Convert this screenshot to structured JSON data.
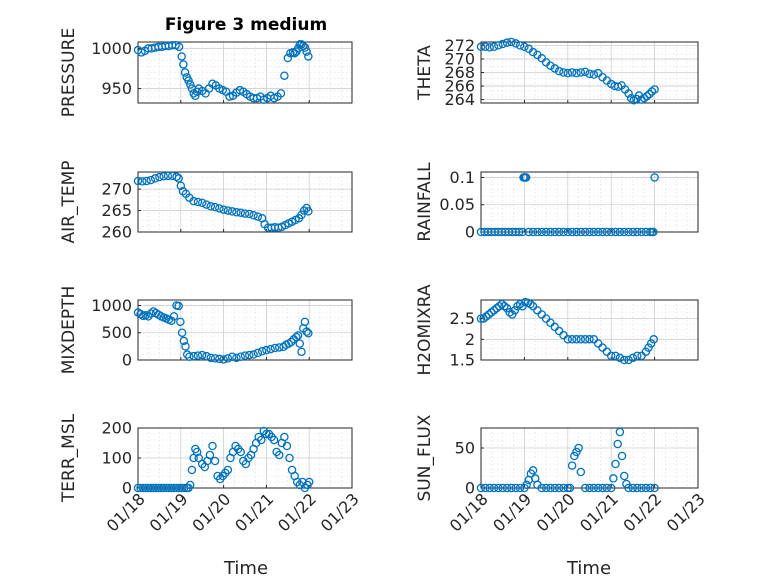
{
  "chart_data": {
    "type": "scatter",
    "title": "Figure 3 medium",
    "xlabel": "Time",
    "xlim": [
      0,
      5
    ],
    "xticks": [
      0,
      1,
      2,
      3,
      4,
      5
    ],
    "xticklabels": [
      "01/18",
      "01/19",
      "01/20",
      "01/21",
      "01/22",
      "01/23"
    ],
    "marker_color": "#0072BD",
    "panels": [
      {
        "id": "pressure",
        "ylabel": "PRESSURE",
        "ylim": [
          932,
          1008
        ],
        "yticks": [
          950,
          1000
        ],
        "yticklabels": [
          "950",
          "1000"
        ],
        "x": [
          0.0,
          0.08,
          0.16,
          0.24,
          0.32,
          0.4,
          0.48,
          0.56,
          0.64,
          0.72,
          0.8,
          0.88,
          0.96,
          1.02,
          1.06,
          1.1,
          1.14,
          1.18,
          1.22,
          1.26,
          1.3,
          1.34,
          1.38,
          1.42,
          1.5,
          1.58,
          1.66,
          1.74,
          1.82,
          1.9,
          1.98,
          2.06,
          2.14,
          2.22,
          2.3,
          2.38,
          2.46,
          2.54,
          2.62,
          2.7,
          2.78,
          2.86,
          2.94,
          3.02,
          3.1,
          3.18,
          3.26,
          3.34,
          3.42,
          3.5,
          3.56,
          3.62,
          3.66,
          3.7,
          3.74,
          3.78,
          3.82,
          3.86,
          3.9,
          3.94,
          3.98
        ],
        "values": [
          998,
          995,
          997,
          1000,
          1000,
          1001,
          1002,
          1002,
          1003,
          1003,
          1004,
          1004,
          1002,
          990,
          980,
          970,
          964,
          960,
          955,
          950,
          944,
          941,
          946,
          950,
          947,
          944,
          950,
          956,
          954,
          950,
          948,
          946,
          940,
          941,
          945,
          948,
          946,
          943,
          940,
          938,
          938,
          940,
          936,
          938,
          941,
          938,
          940,
          944,
          966,
          988,
          994,
          995,
          994,
          996,
          1000,
          1005,
          1005,
          1003,
          1001,
          996,
          990
        ]
      },
      {
        "id": "theta",
        "ylabel": "THETA",
        "ylim": [
          263.5,
          272.5
        ],
        "yticks": [
          264,
          266,
          268,
          270,
          272
        ],
        "yticklabels": [
          "264",
          "266",
          "268",
          "270",
          "272"
        ],
        "x": [
          0.0,
          0.1,
          0.2,
          0.3,
          0.4,
          0.5,
          0.6,
          0.7,
          0.8,
          0.9,
          1.0,
          1.1,
          1.2,
          1.3,
          1.4,
          1.5,
          1.6,
          1.7,
          1.8,
          1.9,
          2.0,
          2.1,
          2.2,
          2.3,
          2.4,
          2.5,
          2.6,
          2.7,
          2.8,
          2.9,
          3.0,
          3.08,
          3.16,
          3.24,
          3.32,
          3.4,
          3.46,
          3.52,
          3.58,
          3.64,
          3.7,
          3.76,
          3.82,
          3.88,
          3.94,
          4.0
        ],
        "values": [
          271.8,
          271.8,
          271.7,
          271.8,
          272.0,
          272.2,
          272.4,
          272.5,
          272.3,
          272.0,
          271.8,
          271.5,
          271.0,
          270.6,
          270.1,
          269.5,
          269.0,
          268.6,
          268.2,
          268.0,
          267.9,
          268.0,
          267.9,
          268.0,
          268.1,
          267.8,
          267.7,
          267.9,
          267.3,
          266.8,
          266.3,
          266.0,
          265.9,
          266.1,
          265.5,
          264.9,
          264.2,
          263.9,
          264.1,
          264.6,
          264.0,
          264.2,
          264.5,
          264.8,
          265.2,
          265.5
        ]
      },
      {
        "id": "air_temp",
        "ylabel": "AIR_TEMP",
        "ylim": [
          260,
          274
        ],
        "yticks": [
          260,
          265,
          270
        ],
        "yticklabels": [
          "260",
          "265",
          "270"
        ],
        "x": [
          0.0,
          0.1,
          0.2,
          0.3,
          0.4,
          0.5,
          0.6,
          0.7,
          0.8,
          0.9,
          0.95,
          1.0,
          1.05,
          1.12,
          1.2,
          1.3,
          1.4,
          1.5,
          1.6,
          1.7,
          1.8,
          1.9,
          2.0,
          2.1,
          2.2,
          2.3,
          2.4,
          2.5,
          2.6,
          2.7,
          2.8,
          2.9,
          2.96,
          3.04,
          3.12,
          3.2,
          3.28,
          3.36,
          3.44,
          3.52,
          3.6,
          3.68,
          3.76,
          3.82,
          3.88,
          3.94,
          3.98
        ],
        "values": [
          271.9,
          271.8,
          271.9,
          272.1,
          272.5,
          272.8,
          273.0,
          273.1,
          273.1,
          272.9,
          272.5,
          270.8,
          269.5,
          268.9,
          268.0,
          267.2,
          267.0,
          266.8,
          266.4,
          266.0,
          265.8,
          265.5,
          265.2,
          265.0,
          264.8,
          264.6,
          264.5,
          264.3,
          264.2,
          263.9,
          263.6,
          263.2,
          261.8,
          261.0,
          261.0,
          261.1,
          261.0,
          261.2,
          261.6,
          262.0,
          262.4,
          262.8,
          263.2,
          264.0,
          265.0,
          265.6,
          264.8
        ]
      },
      {
        "id": "rainfall",
        "ylabel": "RAINFALL",
        "ylim": [
          0,
          0.11
        ],
        "yticks": [
          0,
          0.05,
          0.1
        ],
        "yticklabels": [
          "0",
          "0.05",
          "0.1"
        ],
        "x": [
          0.0,
          0.08,
          0.16,
          0.24,
          0.32,
          0.4,
          0.48,
          0.56,
          0.64,
          0.72,
          0.8,
          0.88,
          0.96,
          0.98,
          1.0,
          1.02,
          1.04,
          1.1,
          1.2,
          1.3,
          1.4,
          1.5,
          1.6,
          1.7,
          1.8,
          1.9,
          2.0,
          2.1,
          2.2,
          2.3,
          2.4,
          2.5,
          2.6,
          2.7,
          2.8,
          2.9,
          3.0,
          3.1,
          3.2,
          3.3,
          3.4,
          3.5,
          3.6,
          3.7,
          3.8,
          3.9,
          3.95,
          3.97,
          4.0
        ],
        "values": [
          0,
          0,
          0,
          0,
          0,
          0,
          0,
          0,
          0,
          0,
          0,
          0,
          0,
          0.1,
          0.1,
          0.1,
          0.1,
          0,
          0,
          0,
          0,
          0,
          0,
          0,
          0,
          0,
          0,
          0,
          0,
          0,
          0,
          0,
          0,
          0,
          0,
          0,
          0,
          0,
          0,
          0,
          0,
          0,
          0,
          0,
          0,
          0,
          0,
          0,
          0.1
        ]
      },
      {
        "id": "mixdepth",
        "ylabel": "MIXDEPTH",
        "ylim": [
          0,
          1100
        ],
        "yticks": [
          0,
          500,
          1000
        ],
        "yticklabels": [
          "0",
          "500",
          "1000"
        ],
        "x": [
          0.0,
          0.06,
          0.12,
          0.18,
          0.24,
          0.3,
          0.36,
          0.42,
          0.48,
          0.54,
          0.6,
          0.66,
          0.72,
          0.78,
          0.84,
          0.9,
          0.95,
          0.99,
          1.03,
          1.07,
          1.11,
          1.15,
          1.2,
          1.3,
          1.4,
          1.5,
          1.6,
          1.7,
          1.8,
          1.9,
          2.0,
          2.1,
          2.2,
          2.3,
          2.4,
          2.5,
          2.6,
          2.7,
          2.8,
          2.9,
          3.0,
          3.1,
          3.2,
          3.3,
          3.4,
          3.46,
          3.52,
          3.58,
          3.64,
          3.7,
          3.74,
          3.78,
          3.82,
          3.86,
          3.9,
          3.94,
          3.98
        ],
        "values": [
          870,
          840,
          810,
          820,
          800,
          850,
          890,
          860,
          830,
          800,
          780,
          760,
          740,
          720,
          800,
          1000,
          990,
          700,
          500,
          350,
          250,
          100,
          60,
          70,
          80,
          90,
          70,
          40,
          30,
          20,
          10,
          30,
          60,
          40,
          60,
          80,
          90,
          100,
          130,
          160,
          180,
          200,
          220,
          230,
          240,
          280,
          300,
          330,
          380,
          420,
          450,
          300,
          150,
          580,
          700,
          520,
          490
        ]
      },
      {
        "id": "h2omixra",
        "ylabel": "H2OMIXRA",
        "ylim": [
          1.5,
          2.95
        ],
        "yticks": [
          1.5,
          2,
          2.5
        ],
        "yticklabels": [
          "1.5",
          "2",
          "2.5"
        ],
        "x": [
          0.0,
          0.06,
          0.12,
          0.18,
          0.24,
          0.3,
          0.36,
          0.42,
          0.48,
          0.54,
          0.6,
          0.66,
          0.72,
          0.78,
          0.84,
          0.9,
          0.96,
          1.02,
          1.08,
          1.14,
          1.2,
          1.3,
          1.4,
          1.5,
          1.6,
          1.7,
          1.8,
          1.9,
          2.0,
          2.1,
          2.2,
          2.3,
          2.4,
          2.5,
          2.6,
          2.7,
          2.8,
          2.9,
          3.0,
          3.1,
          3.2,
          3.3,
          3.4,
          3.5,
          3.6,
          3.7,
          3.8,
          3.86,
          3.92,
          3.98
        ],
        "values": [
          2.5,
          2.5,
          2.55,
          2.6,
          2.65,
          2.7,
          2.75,
          2.8,
          2.85,
          2.8,
          2.75,
          2.65,
          2.6,
          2.7,
          2.8,
          2.85,
          2.8,
          2.9,
          2.88,
          2.85,
          2.8,
          2.7,
          2.6,
          2.5,
          2.4,
          2.3,
          2.2,
          2.1,
          2.0,
          2.0,
          2.0,
          2.0,
          2.0,
          2.0,
          2.0,
          1.9,
          1.8,
          1.7,
          1.6,
          1.6,
          1.55,
          1.5,
          1.5,
          1.55,
          1.6,
          1.6,
          1.7,
          1.8,
          1.9,
          2.0
        ]
      },
      {
        "id": "terr_msl",
        "ylabel": "TERR_MSL",
        "ylim": [
          0,
          200
        ],
        "yticks": [
          0,
          100,
          200
        ],
        "yticklabels": [
          "0",
          "100",
          "200"
        ],
        "x": [
          0.0,
          0.06,
          0.12,
          0.18,
          0.24,
          0.3,
          0.36,
          0.42,
          0.48,
          0.54,
          0.6,
          0.66,
          0.72,
          0.78,
          0.84,
          0.9,
          0.96,
          1.02,
          1.08,
          1.14,
          1.18,
          1.22,
          1.26,
          1.3,
          1.34,
          1.38,
          1.42,
          1.5,
          1.56,
          1.62,
          1.68,
          1.74,
          1.8,
          1.86,
          1.92,
          1.98,
          2.04,
          2.1,
          2.16,
          2.22,
          2.28,
          2.34,
          2.4,
          2.46,
          2.52,
          2.58,
          2.64,
          2.7,
          2.76,
          2.82,
          2.88,
          2.94,
          3.0,
          3.06,
          3.12,
          3.18,
          3.24,
          3.3,
          3.36,
          3.42,
          3.48,
          3.54,
          3.6,
          3.66,
          3.72,
          3.78,
          3.84,
          3.9,
          3.96,
          4.0
        ],
        "values": [
          0,
          0,
          0,
          0,
          0,
          0,
          0,
          0,
          0,
          0,
          0,
          0,
          0,
          0,
          0,
          0,
          0,
          0,
          0,
          0,
          0,
          10,
          60,
          100,
          130,
          120,
          100,
          80,
          70,
          90,
          110,
          140,
          90,
          40,
          30,
          40,
          50,
          60,
          100,
          120,
          140,
          130,
          120,
          90,
          80,
          100,
          110,
          130,
          150,
          170,
          160,
          190,
          180,
          180,
          170,
          160,
          120,
          110,
          150,
          170,
          140,
          100,
          60,
          40,
          20,
          10,
          20,
          0,
          10,
          20
        ]
      },
      {
        "id": "sun_flux",
        "ylabel": "SUN_FLUX",
        "ylim": [
          0,
          75
        ],
        "yticks": [
          0,
          50
        ],
        "yticklabels": [
          "0",
          "50"
        ],
        "x": [
          0.0,
          0.1,
          0.2,
          0.3,
          0.4,
          0.5,
          0.6,
          0.7,
          0.8,
          0.9,
          1.0,
          1.05,
          1.1,
          1.15,
          1.2,
          1.25,
          1.3,
          1.4,
          1.5,
          1.6,
          1.7,
          1.8,
          1.9,
          2.0,
          2.05,
          2.1,
          2.15,
          2.2,
          2.25,
          2.3,
          2.4,
          2.5,
          2.6,
          2.7,
          2.8,
          2.9,
          3.0,
          3.05,
          3.1,
          3.15,
          3.2,
          3.25,
          3.3,
          3.35,
          3.4,
          3.5,
          3.6,
          3.7,
          3.8,
          3.9,
          4.0
        ],
        "values": [
          0,
          0,
          0,
          0,
          0,
          0,
          0,
          0,
          0,
          0,
          0,
          4,
          10,
          18,
          22,
          12,
          4,
          0,
          0,
          0,
          0,
          0,
          0,
          0,
          0,
          28,
          40,
          45,
          50,
          20,
          0,
          0,
          0,
          0,
          0,
          0,
          0,
          12,
          30,
          55,
          70,
          40,
          15,
          5,
          0,
          0,
          0,
          0,
          0,
          0,
          0
        ]
      }
    ]
  }
}
